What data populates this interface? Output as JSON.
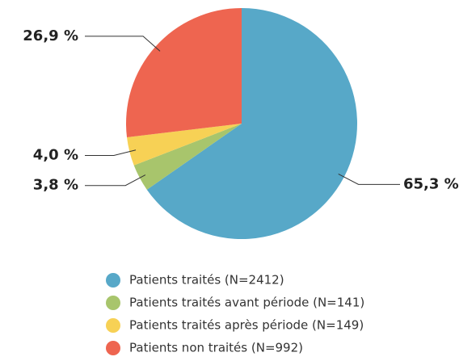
{
  "chart_data": {
    "type": "pie",
    "categories": [
      "Patients traités (N=2412)",
      "Patients traités avant période (N=141)",
      "Patients traités après période (N=149)",
      "Patients non traités (N=992)"
    ],
    "values": [
      65.3,
      3.8,
      4.0,
      26.9
    ],
    "value_labels": [
      "65,3 %",
      "3,8 %",
      "4,0 %",
      "26,9 %"
    ],
    "colors": [
      "#57a8c8",
      "#a8c56c",
      "#f7d155",
      "#ee6550"
    ]
  }
}
